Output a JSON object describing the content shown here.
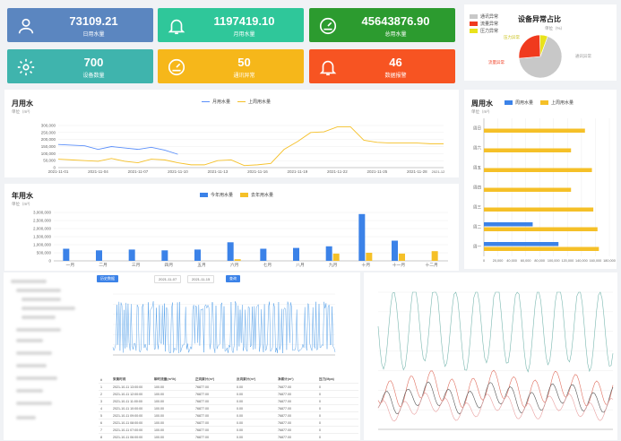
{
  "cards": [
    {
      "value": "73109.21",
      "label": "日用水量",
      "color": "#5b86c0",
      "icon": "user-icon"
    },
    {
      "value": "1197419.10",
      "label": "月用水量",
      "color": "#2fc79a",
      "icon": "bell-icon"
    },
    {
      "value": "45643876.90",
      "label": "总用水量",
      "color": "#2c9b2f",
      "icon": "gauge-icon"
    },
    {
      "value": "700",
      "label": "设备数量",
      "color": "#3fb4ad",
      "icon": "gear-icon"
    },
    {
      "value": "50",
      "label": "通讯异常",
      "color": "#f6b71a",
      "icon": "gauge-icon"
    },
    {
      "value": "46",
      "label": "数据报警",
      "color": "#f75422",
      "icon": "bell-icon"
    }
  ],
  "pie": {
    "title": "设备异常占比",
    "unit": "单位（%）",
    "legend": [
      "通讯异常",
      "流量异常",
      "压力异常"
    ],
    "labels": {
      "comm": "通讯异常",
      "flow": "流量异常",
      "pressure": "压力异常"
    },
    "colors": [
      "#c8c8c8",
      "#f03a1e",
      "#e9e21b"
    ]
  },
  "month": {
    "title": "月用水",
    "unit": "单位（m³）",
    "legend": [
      "月用水量",
      "上周用水量"
    ],
    "colors": [
      "#5b8ff9",
      "#f5c028"
    ],
    "yticks": [
      "300,000",
      "250,000",
      "200,000",
      "150,000",
      "100,000",
      "50,000",
      "0"
    ],
    "xticks": [
      "2021-11-01",
      "2021-11-04",
      "2021-11-07",
      "2021-11-10",
      "2021-11-13",
      "2021-11-16",
      "2021-11-19",
      "2021-11-22",
      "2021-11-25",
      "2021-11-28"
    ],
    "xend": "2021-12"
  },
  "year": {
    "title": "年用水",
    "unit": "单位（m³）",
    "legend": [
      "今年用水量",
      "去年用水量"
    ],
    "colors": [
      "#3b82e8",
      "#f5c028"
    ],
    "yticks": [
      "3,000,000",
      "2,500,000",
      "2,000,000",
      "1,500,000",
      "1,000,000",
      "500,000",
      "0"
    ],
    "xticks": [
      "一月",
      "二月",
      "三月",
      "四月",
      "五月",
      "六月",
      "七月",
      "八月",
      "九月",
      "十月",
      "十一月",
      "十二月"
    ]
  },
  "week": {
    "title": "周用水",
    "unit": "单位（m³）",
    "legend": [
      "周用水量",
      "上周用水量"
    ],
    "colors": [
      "#3b82e8",
      "#f5c028"
    ],
    "days": [
      "周日",
      "周六",
      "周五",
      "周四",
      "周三",
      "周二",
      "周一"
    ],
    "xticks": [
      "0",
      "20,000",
      "40,000",
      "60,000",
      "80,000",
      "100,000",
      "120,000",
      "140,000",
      "160,000",
      "180,000"
    ]
  },
  "lower": {
    "btn_query": "查询",
    "btn_tab": "历史数据",
    "date1": "2021-11-07",
    "date2": "2021-11-15",
    "table_headers": [
      "#",
      "采集时间",
      "瞬时流量(m³/h)",
      "正向累计(m³)",
      "反向累计(m³)",
      "净累计(m³)",
      "压力(Mpa)"
    ],
    "rows": [
      [
        "1",
        "2021-10-11 13:00:00",
        "100.00",
        "76877.00",
        "0.00",
        "76877.00",
        "0"
      ],
      [
        "2",
        "2021-10-11 12:00:00",
        "100.00",
        "76877.00",
        "0.00",
        "76877.00",
        "0"
      ],
      [
        "3",
        "2021-10-11 11:00:00",
        "100.00",
        "76877.00",
        "0.00",
        "76877.00",
        "0"
      ],
      [
        "4",
        "2021-10-11 10:00:00",
        "100.00",
        "76877.00",
        "0.00",
        "76877.00",
        "0"
      ],
      [
        "5",
        "2021-10-11 09:00:00",
        "100.00",
        "76877.00",
        "0.00",
        "76877.00",
        "0"
      ],
      [
        "6",
        "2021-10-11 08:00:00",
        "100.00",
        "76877.00",
        "0.00",
        "76877.00",
        "0"
      ],
      [
        "7",
        "2021-10-11 07:00:00",
        "100.00",
        "76877.00",
        "0.00",
        "76877.00",
        "0"
      ],
      [
        "8",
        "2021-10-11 06:00:00",
        "100.00",
        "76877.00",
        "0.00",
        "76877.00",
        "0"
      ]
    ]
  },
  "chart_data": [
    {
      "type": "pie",
      "title": "设备异常占比",
      "categories": [
        "通讯异常",
        "流量异常",
        "压力异常"
      ],
      "values": [
        68,
        26,
        6
      ]
    },
    {
      "type": "line",
      "title": "月用水",
      "ylabel": "单位（m³）",
      "ylim": [
        0,
        300000
      ],
      "x": [
        "2021-11-01",
        "2021-11-02",
        "2021-11-03",
        "2021-11-04",
        "2021-11-05",
        "2021-11-06",
        "2021-11-07",
        "2021-11-08",
        "2021-11-09",
        "2021-11-10",
        "2021-11-11",
        "2021-11-12",
        "2021-11-13",
        "2021-11-14",
        "2021-11-15",
        "2021-11-16",
        "2021-11-17",
        "2021-11-18",
        "2021-11-19",
        "2021-11-20",
        "2021-11-21",
        "2021-11-22",
        "2021-11-23",
        "2021-11-24",
        "2021-11-25",
        "2021-11-26",
        "2021-11-27",
        "2021-11-28",
        "2021-11-29",
        "2021-11-30"
      ],
      "series": [
        {
          "name": "月用水量",
          "values": [
            165000,
            160000,
            155000,
            130000,
            150000,
            140000,
            130000,
            145000,
            125000,
            95000,
            null,
            null,
            null,
            null,
            null,
            null,
            null,
            null,
            null,
            null,
            null,
            null,
            null,
            null,
            null,
            null,
            null,
            null,
            null,
            null
          ]
        },
        {
          "name": "上周用水量",
          "values": [
            60000,
            55000,
            50000,
            45000,
            65000,
            45000,
            35000,
            60000,
            55000,
            35000,
            20000,
            20000,
            50000,
            55000,
            15000,
            20000,
            30000,
            130000,
            185000,
            250000,
            255000,
            290000,
            290000,
            195000,
            180000,
            175000,
            175000,
            175000,
            170000,
            170000
          ]
        }
      ]
    },
    {
      "type": "bar",
      "title": "年用水",
      "ylabel": "单位（m³）",
      "ylim": [
        0,
        3000000
      ],
      "categories": [
        "一月",
        "二月",
        "三月",
        "四月",
        "五月",
        "六月",
        "七月",
        "八月",
        "九月",
        "十月",
        "十一月",
        "十二月"
      ],
      "series": [
        {
          "name": "今年用水量",
          "values": [
            750000,
            650000,
            700000,
            650000,
            700000,
            1150000,
            750000,
            800000,
            900000,
            2900000,
            1250000,
            0
          ]
        },
        {
          "name": "去年用水量",
          "values": [
            0,
            0,
            0,
            0,
            0,
            100000,
            0,
            0,
            450000,
            500000,
            450000,
            600000
          ]
        }
      ]
    },
    {
      "type": "bar",
      "title": "周用水",
      "orientation": "horizontal",
      "xlim": [
        0,
        180000
      ],
      "categories": [
        "周日",
        "周六",
        "周五",
        "周四",
        "周三",
        "周二",
        "周一"
      ],
      "series": [
        {
          "name": "周用水量",
          "values": [
            0,
            0,
            0,
            0,
            0,
            70000,
            107000
          ]
        },
        {
          "name": "上周用水量",
          "values": [
            145000,
            125000,
            155000,
            125000,
            157000,
            163000,
            165000
          ]
        }
      ]
    }
  ]
}
